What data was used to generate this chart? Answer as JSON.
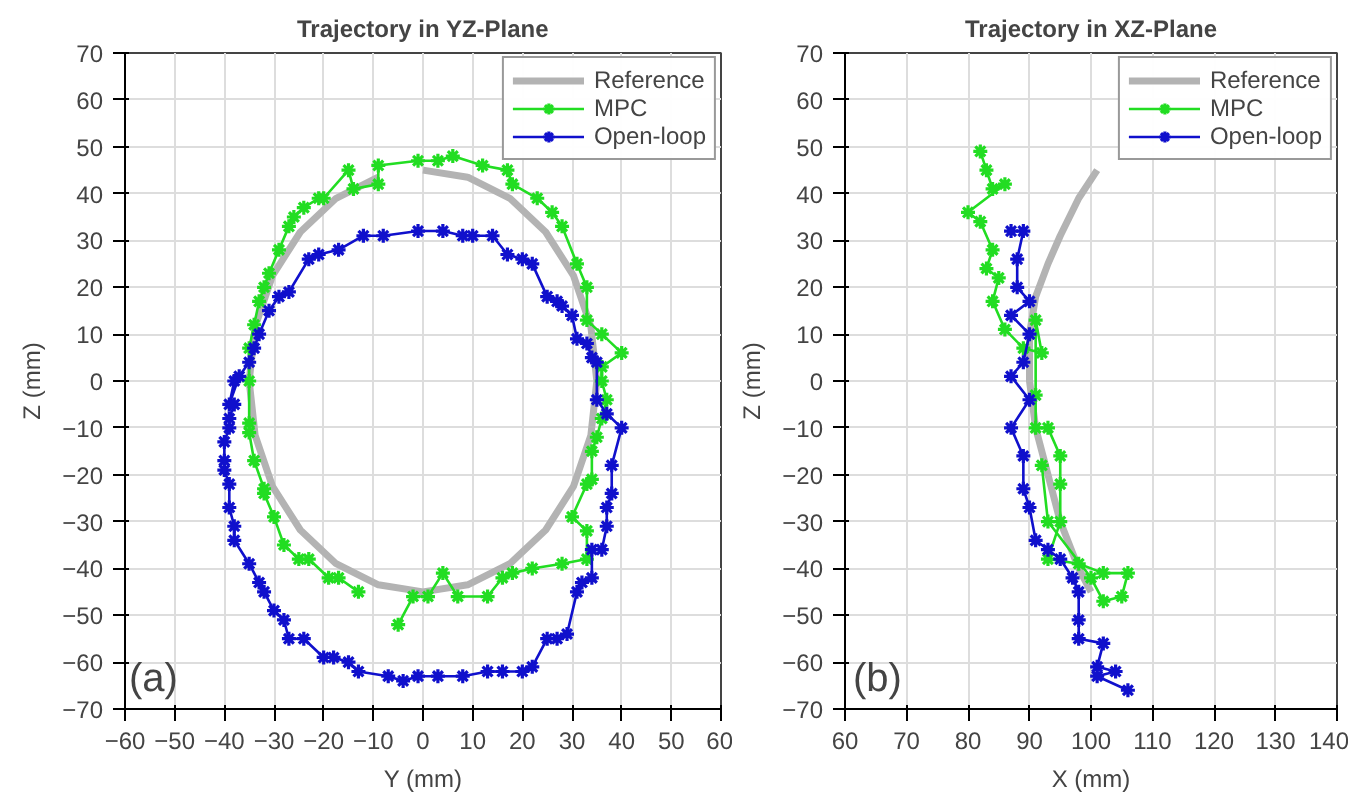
{
  "chart_data": [
    {
      "type": "line",
      "title": "Trajectory in YZ-Plane",
      "xlabel": "Y (mm)",
      "ylabel": "Z (mm)",
      "xlim": [
        -60,
        60
      ],
      "ylim": [
        -70,
        70
      ],
      "xticks": [
        -60,
        -50,
        -40,
        -30,
        -20,
        -10,
        0,
        10,
        20,
        30,
        40,
        50,
        60
      ],
      "yticks": [
        -70,
        -60,
        -50,
        -40,
        -30,
        -20,
        -10,
        0,
        10,
        20,
        30,
        40,
        50,
        60,
        70
      ],
      "grid": true,
      "legend": "top right",
      "marker": "cross",
      "annotations": [
        "(a)"
      ],
      "series": [
        {
          "name": "Reference",
          "color": "#b3b3b3",
          "marker": "none",
          "x": [
            0,
            9,
            17.5,
            24.7,
            30.3,
            33.8,
            35,
            33.8,
            30.3,
            24.7,
            17.5,
            9,
            0,
            -9,
            -17.5,
            -24.7,
            -30.3,
            -33.8,
            -35,
            -33.8,
            -30.3,
            -24.7,
            -17.5,
            -9
          ],
          "values": [
            45,
            43.5,
            39,
            31.8,
            22.5,
            11.6,
            0,
            -11.6,
            -22.5,
            -31.8,
            -39,
            -43.5,
            -45,
            -43.5,
            -39,
            -31.8,
            -22.5,
            -11.6,
            0,
            11.6,
            22.5,
            31.8,
            39,
            43.5
          ]
        },
        {
          "name": "MPC",
          "color": "#22dd22",
          "x": [
            -5,
            -2,
            1,
            4,
            7,
            13,
            16,
            18,
            22,
            28,
            33,
            33,
            30,
            33,
            34,
            34,
            35,
            36,
            37,
            36,
            36,
            40,
            36,
            33,
            33,
            31,
            28,
            26,
            23,
            18,
            17,
            12,
            6,
            3,
            -1,
            -9,
            -9,
            -14,
            -15,
            -20,
            -21,
            -24,
            -26,
            -27,
            -29,
            -31,
            -32,
            -33,
            -34,
            -35,
            -35,
            -35,
            -35,
            -34,
            -32,
            -32,
            -30,
            -28,
            -25,
            -23,
            -19,
            -17,
            -13
          ],
          "values": [
            -52,
            -46,
            -46,
            -41,
            -46,
            -46,
            -42,
            -41,
            -40,
            -39,
            -38,
            -32,
            -29,
            -22,
            -21,
            -15,
            -12,
            -8,
            -4,
            0,
            3,
            6,
            10,
            13,
            20,
            25,
            33,
            36,
            39,
            42,
            45,
            46,
            48,
            47,
            47,
            46,
            42,
            41,
            45,
            39,
            39,
            37,
            35,
            33,
            28,
            23,
            20,
            17,
            12,
            7,
            0,
            -9,
            -11,
            -17,
            -23,
            -24,
            -29,
            -35,
            -38,
            -38,
            -42,
            -42,
            -45
          ]
        },
        {
          "name": "Open-loop",
          "color": "#1010cc",
          "x": [
            -38,
            -39,
            -37,
            -35,
            -34,
            -33,
            -31,
            -29,
            -27,
            -23,
            -21,
            -17,
            -12,
            -8,
            -1,
            4,
            8,
            10,
            14,
            17,
            20,
            22,
            25,
            27,
            28,
            30,
            31,
            33,
            34,
            35,
            35,
            37,
            40,
            38,
            38,
            37,
            37,
            36,
            34,
            34,
            32,
            31,
            29,
            27,
            25,
            22,
            20,
            16,
            13,
            8,
            3,
            -1,
            -4,
            -7,
            -13,
            -15,
            -18,
            -20,
            -24,
            -27,
            -28,
            -30,
            -32,
            -33,
            -35,
            -38,
            -38,
            -39,
            -39,
            -40,
            -40,
            -40,
            -39,
            -39,
            -38
          ],
          "values": [
            0,
            -5,
            1,
            4,
            7,
            10,
            15,
            18,
            19,
            26,
            27,
            28,
            31,
            31,
            32,
            32,
            31,
            31,
            31,
            27,
            26,
            25,
            18,
            17,
            16,
            14,
            9,
            8,
            5,
            4,
            -4,
            -7,
            -10,
            -18,
            -24,
            -27,
            -31,
            -36,
            -36,
            -42,
            -43,
            -45,
            -54,
            -55,
            -55,
            -61,
            -62,
            -62,
            -62,
            -63,
            -63,
            -63,
            -64,
            -63,
            -62,
            -60,
            -59,
            -59,
            -55,
            -55,
            -51,
            -49,
            -45,
            -43,
            -39,
            -34,
            -31,
            -27,
            -22,
            -19,
            -17,
            -13,
            -10,
            -8,
            -5
          ]
        }
      ]
    },
    {
      "type": "line",
      "title": "Trajectory in XZ-Plane",
      "xlabel": "X (mm)",
      "ylabel": "Z (mm)",
      "xlim": [
        60,
        140
      ],
      "ylim": [
        -70,
        70
      ],
      "xticks": [
        60,
        70,
        80,
        90,
        100,
        110,
        120,
        130,
        140
      ],
      "yticks": [
        -70,
        -60,
        -50,
        -40,
        -30,
        -20,
        -10,
        0,
        10,
        20,
        30,
        40,
        50,
        60,
        70
      ],
      "grid": true,
      "legend": "top right",
      "marker": "cross",
      "annotations": [
        "(b)"
      ],
      "series": [
        {
          "name": "Reference",
          "color": "#b3b3b3",
          "marker": "none",
          "x": [
            101,
            98,
            95,
            93,
            91,
            90,
            90,
            91,
            93,
            95,
            98,
            100
          ],
          "values": [
            45,
            39,
            31,
            25,
            18,
            10,
            0,
            -10,
            -20,
            -30,
            -40,
            -45
          ]
        },
        {
          "name": "MPC",
          "color": "#22dd22",
          "x": [
            82,
            83,
            84,
            86,
            80,
            82,
            84,
            83,
            85,
            84,
            86,
            89,
            92,
            91,
            91,
            91,
            93,
            95,
            95,
            95,
            93,
            98,
            102,
            106,
            105,
            102,
            100,
            93,
            92
          ],
          "values": [
            49,
            45,
            41,
            42,
            36,
            34,
            28,
            24,
            22,
            17,
            11,
            7,
            6,
            13,
            -3,
            -10,
            -10,
            -16,
            -22,
            -30,
            -38,
            -39,
            -41,
            -41,
            -46,
            -47,
            -42,
            -30,
            -18
          ]
        },
        {
          "name": "Open-loop",
          "color": "#1010cc",
          "x": [
            87,
            89,
            88,
            88,
            90,
            87,
            90,
            89,
            87,
            90,
            87,
            89,
            89,
            90,
            91,
            93,
            95,
            97,
            98,
            98,
            98,
            102,
            101,
            104,
            101,
            106
          ],
          "values": [
            32,
            32,
            26,
            20,
            17,
            14,
            10,
            4,
            1,
            -4,
            -10,
            -16,
            -23,
            -27,
            -34,
            -36,
            -38,
            -42,
            -45,
            -51,
            -55,
            -56,
            -61,
            -62,
            -63,
            -66
          ]
        }
      ]
    }
  ]
}
